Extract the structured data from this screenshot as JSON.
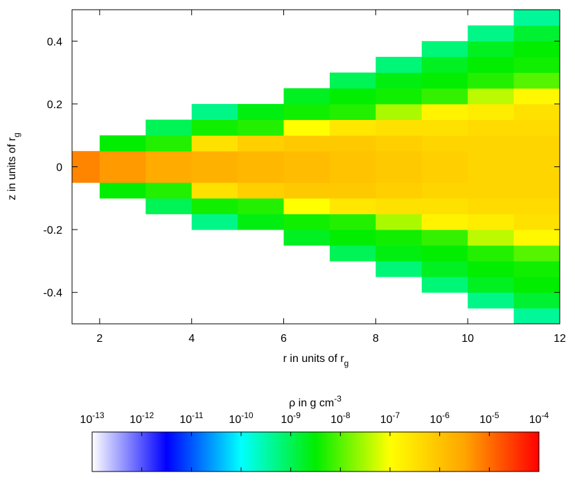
{
  "chart_data": {
    "type": "heatmap",
    "x_label": {
      "text": "r in units of r",
      "sub": "g"
    },
    "y_label": {
      "text": "z in units of r",
      "sub": "g"
    },
    "xlim": [
      1.4,
      12
    ],
    "ylim": [
      -0.5,
      0.5
    ],
    "xticks": [
      2,
      4,
      6,
      8,
      10,
      12
    ],
    "yticks": [
      0.4,
      0.2,
      0,
      -0.2,
      -0.4
    ],
    "r_bins": [
      1.4,
      2,
      3,
      4,
      5,
      6,
      7,
      8,
      9,
      10,
      11,
      12
    ],
    "z_bins": [
      -0.5,
      -0.45,
      -0.4,
      -0.35,
      -0.3,
      -0.25,
      -0.2,
      -0.15,
      -0.1,
      -0.05,
      0,
      0.05,
      0.1,
      0.15,
      0.2,
      0.25,
      0.3,
      0.35,
      0.4,
      0.45,
      0.5
    ],
    "density": [
      [
        null,
        null,
        null,
        null,
        null,
        null,
        null,
        null,
        null,
        6.3e-06,
        6.3e-06,
        null,
        null,
        null,
        null,
        null,
        null,
        null,
        null,
        null
      ],
      [
        null,
        null,
        null,
        null,
        null,
        null,
        null,
        null,
        3.2e-09,
        4e-06,
        4e-06,
        3.2e-09,
        null,
        null,
        null,
        null,
        null,
        null,
        null,
        null
      ],
      [
        null,
        null,
        null,
        null,
        null,
        null,
        null,
        1e-09,
        5e-09,
        2.5e-06,
        2.5e-06,
        5e-09,
        1e-09,
        null,
        null,
        null,
        null,
        null,
        null,
        null
      ],
      [
        null,
        null,
        null,
        null,
        null,
        null,
        5e-10,
        4e-09,
        3.2e-07,
        2e-06,
        2e-06,
        3.2e-07,
        4e-09,
        5e-10,
        null,
        null,
        null,
        null,
        null,
        null
      ],
      [
        null,
        null,
        null,
        null,
        null,
        null,
        2.5e-09,
        5e-09,
        6.3e-07,
        1.6e-06,
        1.6e-06,
        6.3e-07,
        5e-09,
        2.5e-09,
        null,
        null,
        null,
        null,
        null,
        null
      ],
      [
        null,
        null,
        null,
        null,
        null,
        2e-09,
        4e-09,
        1e-07,
        7.9e-07,
        1.3e-06,
        1.3e-06,
        7.9e-07,
        1e-07,
        4e-09,
        2e-09,
        null,
        null,
        null,
        null,
        null
      ],
      [
        null,
        null,
        null,
        null,
        1e-09,
        3.2e-09,
        5e-09,
        2.5e-07,
        7.9e-07,
        1e-06,
        1e-06,
        7.9e-07,
        2.5e-07,
        5e-09,
        3.2e-09,
        1e-09,
        null,
        null,
        null,
        null
      ],
      [
        null,
        null,
        null,
        6.3e-10,
        2.5e-09,
        4e-09,
        3.2e-08,
        3.2e-07,
        6.3e-07,
        7.9e-07,
        7.9e-07,
        6.3e-07,
        3.2e-07,
        3.2e-08,
        4e-09,
        2.5e-09,
        6.3e-10,
        null,
        null,
        null
      ],
      [
        null,
        null,
        6.3e-10,
        2e-09,
        3.2e-09,
        6.3e-09,
        1.6e-07,
        3.2e-07,
        5e-07,
        6.3e-07,
        6.3e-07,
        5e-07,
        3.2e-07,
        1.6e-07,
        6.3e-09,
        3.2e-09,
        2e-09,
        6.3e-10,
        null,
        null
      ],
      [
        null,
        5e-10,
        2e-09,
        3.2e-09,
        5e-09,
        4e-08,
        2e-07,
        4e-07,
        5e-07,
        5e-07,
        5e-07,
        5e-07,
        4e-07,
        2e-07,
        4e-08,
        5e-09,
        3.2e-09,
        2e-09,
        5e-10,
        null
      ],
      [
        4e-10,
        1.6e-09,
        3.2e-09,
        4e-09,
        1e-08,
        1.3e-07,
        3.2e-07,
        4e-07,
        5e-07,
        5e-07,
        5e-07,
        5e-07,
        4e-07,
        3.2e-07,
        1.3e-07,
        1e-08,
        4e-09,
        3.2e-09,
        1.6e-09,
        4e-10
      ]
    ],
    "colorbar_label": {
      "text": "ρ in g cm",
      "sup": "-3"
    },
    "clim": [
      1e-13,
      0.0001
    ],
    "log_color": true,
    "cticks": [
      {
        "value": 1e-13,
        "label": "10",
        "sup": "-13"
      },
      {
        "value": 1e-12,
        "label": "10",
        "sup": "-12"
      },
      {
        "value": 1e-11,
        "label": "10",
        "sup": "-11"
      },
      {
        "value": 1e-10,
        "label": "10",
        "sup": "-10"
      },
      {
        "value": 1e-09,
        "label": "10",
        "sup": "-9"
      },
      {
        "value": 1e-08,
        "label": "10",
        "sup": "-8"
      },
      {
        "value": 1e-07,
        "label": "10",
        "sup": "-7"
      },
      {
        "value": 1e-06,
        "label": "10",
        "sup": "-6"
      },
      {
        "value": 1e-05,
        "label": "10",
        "sup": "-5"
      },
      {
        "value": 0.0001,
        "label": "10",
        "sup": "-4"
      }
    ],
    "colormap": [
      "#ffffff",
      "#0000ff",
      "#00ffff",
      "#00ee00",
      "#ffff00",
      "#ffa500",
      "#ff0000"
    ]
  }
}
